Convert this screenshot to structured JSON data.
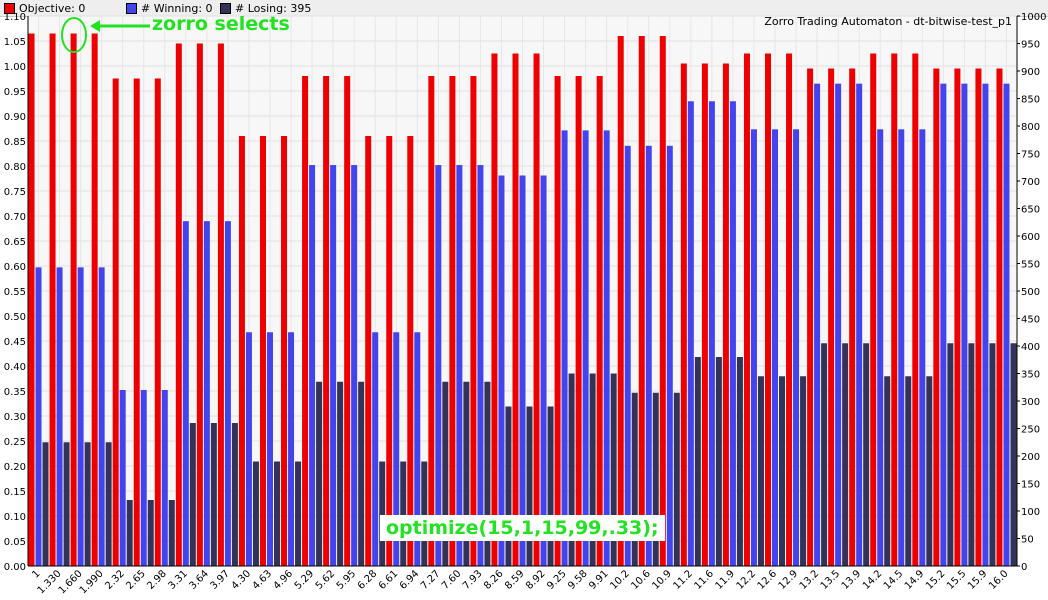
{
  "legend": [
    {
      "label": "Objective: 0",
      "color": "#ee0000"
    },
    {
      "label": "# Winning: 0",
      "color": "#4444ee"
    },
    {
      "label": "# Losing: 395",
      "color": "#33335a"
    }
  ],
  "annotations": {
    "zorro_selects": "zorro selects",
    "optimize": "optimize(15,1,15,99,.33);"
  },
  "chart_data": {
    "type": "bar",
    "title": "Zorro Trading Automaton - dt-bitwise-test_p1",
    "y_left_range": [
      0,
      1.1
    ],
    "y_left_ticks": [
      "0.00",
      "0.05",
      "0.10",
      "0.15",
      "0.20",
      "0.25",
      "0.30",
      "0.35",
      "0.40",
      "0.45",
      "0.50",
      "0.55",
      "0.60",
      "0.65",
      "0.70",
      "0.75",
      "0.80",
      "0.85",
      "0.90",
      "0.95",
      "1.00",
      "1.05",
      "1.10"
    ],
    "y_right_range": [
      0,
      1000
    ],
    "y_right_ticks": [
      "0",
      "50",
      "100",
      "150",
      "200",
      "250",
      "300",
      "350",
      "400",
      "450",
      "500",
      "550",
      "600",
      "650",
      "700",
      "750",
      "800",
      "850",
      "900",
      "950",
      "1000"
    ],
    "x_labels": [
      "1",
      "1.330",
      "1.660",
      "1.990",
      "2.32",
      "2.65",
      "2.98",
      "3.31",
      "3.64",
      "3.97",
      "4.30",
      "4.63",
      "4.96",
      "5.29",
      "5.62",
      "5.95",
      "6.28",
      "6.61",
      "6.94",
      "7.27",
      "7.60",
      "7.93",
      "8.26",
      "8.59",
      "8.92",
      "9.25",
      "9.58",
      "9.91",
      "10.2",
      "10.6",
      "10.9",
      "11.2",
      "11.6",
      "11.9",
      "12.2",
      "12.6",
      "12.9",
      "13.2",
      "13.5",
      "13.9",
      "14.2",
      "14.5",
      "14.9",
      "15.2",
      "15.5",
      "15.9",
      "16.0"
    ],
    "grid": true,
    "series": [
      {
        "name": "Objective",
        "axis": "left",
        "color": "#ee0000",
        "values": [
          1.065,
          1.065,
          1.065,
          1.065,
          0.975,
          0.975,
          0.975,
          1.045,
          1.045,
          1.045,
          0.86,
          0.86,
          0.86,
          0.98,
          0.98,
          0.98,
          0.86,
          0.86,
          0.86,
          0.98,
          0.98,
          0.98,
          1.025,
          1.025,
          1.025,
          0.98,
          0.98,
          0.98,
          1.06,
          1.06,
          1.06,
          1.005,
          1.005,
          1.005,
          1.025,
          1.025,
          1.025,
          0.995,
          0.995,
          0.995,
          1.025,
          1.025,
          1.025,
          0.995,
          0.995,
          0.995,
          0.995
        ]
      },
      {
        "name": "# Winning",
        "axis": "right",
        "color": "#4444ee",
        "values": [
          543,
          543,
          543,
          543,
          320,
          320,
          320,
          627,
          627,
          627,
          425,
          425,
          425,
          729,
          729,
          729,
          425,
          425,
          425,
          729,
          729,
          729,
          710,
          710,
          710,
          792,
          792,
          792,
          764,
          764,
          764,
          845,
          845,
          845,
          794,
          794,
          794,
          877,
          877,
          877,
          794,
          794,
          794,
          877,
          877,
          877,
          877
        ]
      },
      {
        "name": "# Losing",
        "axis": "right",
        "color": "#33335a",
        "values": [
          225,
          225,
          225,
          225,
          120,
          120,
          120,
          260,
          260,
          260,
          190,
          190,
          190,
          335,
          335,
          335,
          190,
          190,
          190,
          335,
          335,
          335,
          290,
          290,
          290,
          350,
          350,
          350,
          315,
          315,
          315,
          380,
          380,
          380,
          345,
          345,
          345,
          405,
          405,
          405,
          345,
          345,
          345,
          405,
          405,
          405,
          405
        ]
      }
    ]
  }
}
